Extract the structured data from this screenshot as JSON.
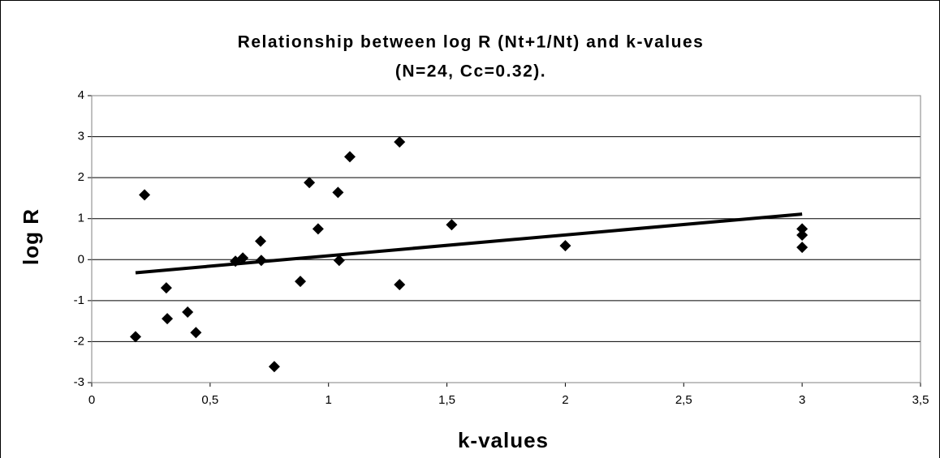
{
  "chart_data": {
    "type": "scatter",
    "title": [
      "Relationship between log R (Nt+1/Nt) and k-values",
      "(N=24, Cc=0.32)."
    ],
    "x_label": "k-values",
    "y_label": "log R",
    "x": [
      0.185,
      0.223,
      0.315,
      0.319,
      0.405,
      0.44,
      0.607,
      0.638,
      0.713,
      0.716,
      0.771,
      0.881,
      0.919,
      0.956,
      1.04,
      1.045,
      1.09,
      1.3,
      1.3,
      1.52,
      2.0,
      3.0,
      3.0,
      3.0
    ],
    "values": [
      -1.88,
      1.58,
      -0.69,
      -1.44,
      -1.28,
      -1.78,
      -0.04,
      0.04,
      0.45,
      -0.02,
      -2.61,
      -0.53,
      1.88,
      0.75,
      1.64,
      -0.02,
      2.51,
      2.87,
      -0.61,
      0.85,
      0.34,
      0.75,
      0.6,
      0.3
    ],
    "color": "#000000",
    "trendline": {
      "x": [
        0.185,
        3.0
      ],
      "values": [
        -0.32,
        1.11
      ],
      "color": "#000000"
    },
    "xlim": [
      0,
      3.5
    ],
    "ylim": [
      -3,
      4
    ],
    "xticks": [
      0,
      {
        "value": 0.5,
        "label": "0,5"
      },
      1,
      {
        "value": 1.5,
        "label": "1,5"
      },
      2,
      {
        "value": 2.5,
        "label": "2,5"
      },
      3,
      {
        "value": 3.5,
        "label": "3,5"
      }
    ],
    "yticks": [
      -3,
      -2,
      -1,
      0,
      1,
      2,
      3,
      4
    ],
    "grid": true
  }
}
